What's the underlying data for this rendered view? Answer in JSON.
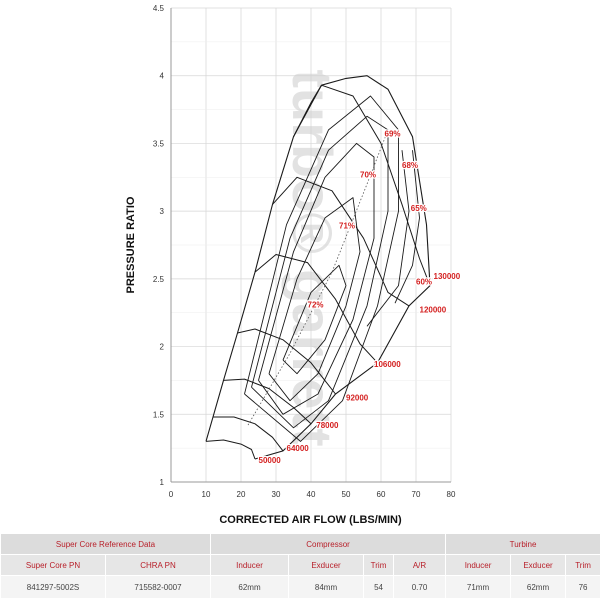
{
  "chart_data": {
    "type": "line",
    "subtype": "compressor-map",
    "xlabel": "CORRECTED AIR FLOW (LBS/MIN)",
    "ylabel": "PRESSURE RATIO",
    "xlim": [
      0,
      80
    ],
    "ylim": [
      1,
      4.5
    ],
    "x_ticks": [
      "0",
      "10",
      "20",
      "30",
      "40",
      "50",
      "60",
      "70",
      "80"
    ],
    "y_ticks": [
      "1",
      "1.5",
      "2",
      "2.5",
      "3",
      "3.5",
      "4",
      "4.5"
    ],
    "grid": true,
    "watermark": "turbo® garrett",
    "surge_line": [
      [
        10,
        1.3
      ],
      [
        12,
        1.48
      ],
      [
        15,
        1.75
      ],
      [
        19,
        2.1
      ],
      [
        24,
        2.55
      ],
      [
        29,
        3.05
      ],
      [
        35,
        3.55
      ],
      [
        40,
        3.8
      ],
      [
        43,
        3.93
      ]
    ],
    "speed_lines": [
      {
        "label": "50000",
        "points": [
          [
            10,
            1.3
          ],
          [
            15,
            1.31
          ],
          [
            20,
            1.28
          ],
          [
            23,
            1.24
          ],
          [
            24,
            1.17
          ]
        ]
      },
      {
        "label": "64000",
        "points": [
          [
            12,
            1.48
          ],
          [
            18,
            1.48
          ],
          [
            24,
            1.43
          ],
          [
            29,
            1.33
          ],
          [
            32,
            1.23
          ]
        ]
      },
      {
        "label": "78000",
        "points": [
          [
            15,
            1.75
          ],
          [
            21,
            1.76
          ],
          [
            28,
            1.69
          ],
          [
            35,
            1.55
          ],
          [
            40,
            1.43
          ]
        ]
      },
      {
        "label": "92000",
        "points": [
          [
            19,
            2.1
          ],
          [
            24,
            2.13
          ],
          [
            32,
            2.05
          ],
          [
            40,
            1.88
          ],
          [
            47,
            1.65
          ]
        ]
      },
      {
        "label": "106000",
        "points": [
          [
            24,
            2.55
          ],
          [
            30,
            2.68
          ],
          [
            39,
            2.62
          ],
          [
            47,
            2.35
          ],
          [
            54,
            2.02
          ],
          [
            59,
            1.88
          ]
        ]
      },
      {
        "label": "120000",
        "points": [
          [
            29,
            3.05
          ],
          [
            36,
            3.25
          ],
          [
            46,
            3.15
          ],
          [
            55,
            2.8
          ],
          [
            62,
            2.4
          ],
          [
            68,
            2.3
          ]
        ]
      },
      {
        "label": "130000",
        "points": [
          [
            35,
            3.55
          ],
          [
            43,
            3.93
          ],
          [
            52,
            3.85
          ],
          [
            60,
            3.5
          ],
          [
            66,
            3.05
          ],
          [
            71,
            2.65
          ],
          [
            74,
            2.45
          ]
        ]
      }
    ],
    "choke_line": [
      [
        24,
        1.17
      ],
      [
        32,
        1.23
      ],
      [
        40,
        1.43
      ],
      [
        47,
        1.65
      ],
      [
        59,
        1.88
      ],
      [
        68,
        2.3
      ],
      [
        74,
        2.45
      ],
      [
        73,
        2.9
      ],
      [
        69,
        3.55
      ],
      [
        62,
        3.9
      ],
      [
        56,
        4.0
      ],
      [
        50,
        3.98
      ],
      [
        43,
        3.93
      ]
    ],
    "efficiency_islands": [
      {
        "label": "72%",
        "points": [
          [
            32,
            1.9
          ],
          [
            40,
            2.4
          ],
          [
            48,
            2.6
          ],
          [
            50,
            2.45
          ],
          [
            44,
            2.05
          ],
          [
            36,
            1.8
          ],
          [
            32,
            1.9
          ]
        ]
      },
      {
        "label": "71%",
        "points": [
          [
            28,
            1.8
          ],
          [
            36,
            2.5
          ],
          [
            44,
            2.95
          ],
          [
            52,
            3.1
          ],
          [
            54,
            2.7
          ],
          [
            50,
            2.3
          ],
          [
            42,
            1.8
          ],
          [
            34,
            1.6
          ],
          [
            28,
            1.8
          ]
        ]
      },
      {
        "label": "70%",
        "points": [
          [
            25,
            1.75
          ],
          [
            35,
            2.7
          ],
          [
            44,
            3.25
          ],
          [
            53,
            3.5
          ],
          [
            58,
            3.4
          ],
          [
            58,
            2.8
          ],
          [
            52,
            2.2
          ],
          [
            42,
            1.65
          ],
          [
            32,
            1.5
          ],
          [
            25,
            1.75
          ]
        ]
      },
      {
        "label": "69%",
        "points": [
          [
            23,
            1.7
          ],
          [
            34,
            2.8
          ],
          [
            45,
            3.45
          ],
          [
            56,
            3.7
          ],
          [
            62,
            3.6
          ],
          [
            62,
            3.0
          ],
          [
            56,
            2.3
          ],
          [
            45,
            1.6
          ],
          [
            35,
            1.4
          ],
          [
            23,
            1.7
          ]
        ]
      },
      {
        "label": "68%",
        "points": [
          [
            21,
            1.65
          ],
          [
            33,
            2.9
          ],
          [
            45,
            3.6
          ],
          [
            57,
            3.85
          ],
          [
            65,
            3.6
          ],
          [
            65,
            3.0
          ],
          [
            59,
            2.3
          ],
          [
            49,
            1.6
          ],
          [
            37,
            1.3
          ],
          [
            21,
            1.65
          ]
        ]
      },
      {
        "label": "65%",
        "points": [
          [
            66,
            3.45
          ],
          [
            68,
            3.0
          ],
          [
            65,
            2.45
          ],
          [
            56,
            2.15
          ]
        ]
      },
      {
        "label": "60%",
        "points": [
          [
            69,
            3.45
          ],
          [
            71,
            2.95
          ],
          [
            69,
            2.6
          ],
          [
            64,
            2.32
          ]
        ]
      }
    ],
    "point_labels": [
      {
        "text": "69%",
        "x": 61,
        "y": 3.55
      },
      {
        "text": "70%",
        "x": 54,
        "y": 3.25
      },
      {
        "text": "68%",
        "x": 66,
        "y": 3.32
      },
      {
        "text": "65%",
        "x": 68.5,
        "y": 3.0
      },
      {
        "text": "71%",
        "x": 48,
        "y": 2.87
      },
      {
        "text": "60%",
        "x": 70,
        "y": 2.46
      },
      {
        "text": "130000",
        "x": 75,
        "y": 2.5
      },
      {
        "text": "120000",
        "x": 71,
        "y": 2.25
      },
      {
        "text": "72%",
        "x": 39,
        "y": 2.29
      },
      {
        "text": "106000",
        "x": 58,
        "y": 1.85
      },
      {
        "text": "92000",
        "x": 50,
        "y": 1.6
      },
      {
        "text": "78000",
        "x": 41.5,
        "y": 1.4
      },
      {
        "text": "64000",
        "x": 33,
        "y": 1.23
      },
      {
        "text": "50000",
        "x": 25,
        "y": 1.14
      }
    ]
  },
  "colors": {
    "line": "#1a1a1a",
    "label_red": "#d42020",
    "grid": "#d6d6d6",
    "watermark": "#cfcfcf"
  },
  "table": {
    "row1": [
      "Super Core Reference Data",
      "Compressor",
      "Turbine"
    ],
    "row2": [
      "Super Core PN",
      "CHRA PN",
      "Inducer",
      "Exducer",
      "Trim",
      "A/R",
      "Inducer",
      "Exducer",
      "Trim"
    ],
    "row3": [
      "841297-5002S",
      "715582-0007",
      "62mm",
      "84mm",
      "54",
      "0.70",
      "71mm",
      "62mm",
      "76"
    ]
  }
}
